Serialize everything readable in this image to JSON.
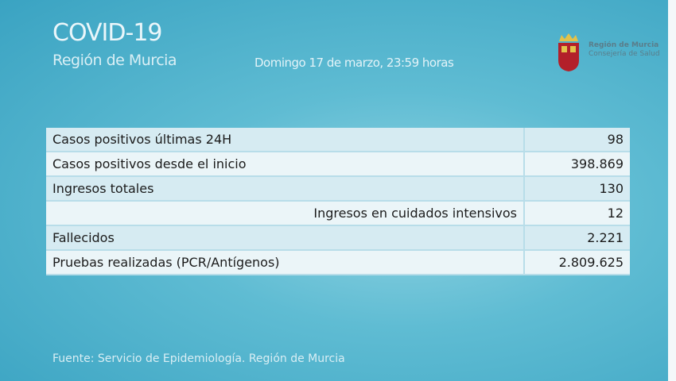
{
  "header": {
    "title": "COVID-19",
    "subtitle": "Región de Murcia",
    "date": "Domingo 17 de marzo, 23:59 horas"
  },
  "logo": {
    "line1": "Región de Murcia",
    "line2": "Consejería de Salud"
  },
  "table": {
    "rows": [
      {
        "label": "Casos positivos últimas 24H",
        "value": "98"
      },
      {
        "label": "Casos positivos desde el inicio",
        "value": "398.869"
      },
      {
        "label": "Ingresos totales",
        "value": "130"
      },
      {
        "label": "Ingresos en cuidados intensivos",
        "value": "12"
      },
      {
        "label": "Fallecidos",
        "value": "2.221"
      },
      {
        "label": "Pruebas realizadas (PCR/Antígenos)",
        "value": "2.809.625"
      }
    ]
  },
  "footer": {
    "source": "Fuente: Servicio de Epidemiología. Región de Murcia"
  }
}
